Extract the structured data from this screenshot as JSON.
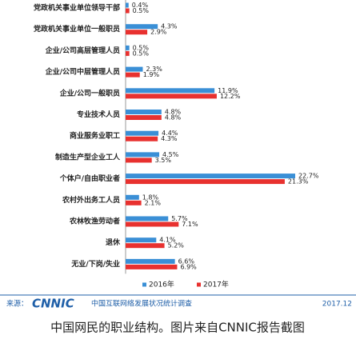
{
  "chart_data": {
    "type": "hbar",
    "categories": [
      "党政机关事业单位领导干部",
      "党政机关事业单位一般职员",
      "企业/公司高层管理人员",
      "企业/公司中层管理人员",
      "企业/公司一般职员",
      "专业技术人员",
      "商业服务业职工",
      "制造生产型企业工人",
      "个体户/自由职业者",
      "农村外出务工人员",
      "农林牧渔劳动者",
      "退休",
      "无业/下岗/失业"
    ],
    "series": [
      {
        "name": "2016年",
        "color": "#3a8fd6",
        "values": [
          0.4,
          4.3,
          0.5,
          2.3,
          11.9,
          4.8,
          4.4,
          4.5,
          22.7,
          1.8,
          5.7,
          4.1,
          6.6
        ],
        "value_labels": [
          "0.4%",
          "4.3%",
          "0.5%",
          "2.3%",
          "11.9%",
          "4.8%",
          "4.4%",
          "4.5%",
          "22.7%",
          "1.8%",
          "5.7%",
          "4.1%",
          "6.6%"
        ]
      },
      {
        "name": "2017年",
        "color": "#e8312f",
        "values": [
          0.5,
          2.9,
          0.5,
          1.9,
          12.2,
          4.8,
          4.3,
          3.5,
          21.3,
          2.1,
          7.1,
          5.2,
          6.9
        ],
        "value_labels": [
          "0.5%",
          "2.9%",
          "0.5%",
          "1.9%",
          "12.2%",
          "4.8%",
          "4.3%",
          "3.5%",
          "21.3%",
          "2.1%",
          "7.1%",
          "5.2%",
          "6.9%"
        ]
      }
    ],
    "legend": "bottom"
  },
  "footer": {
    "source_label": "来源：",
    "logo": "CNNIC",
    "org": "中国互联网络发展状况统计调查",
    "date": "2017.12"
  },
  "caption": "中国网民的职业结构。图片来自CNNIC报告截图"
}
